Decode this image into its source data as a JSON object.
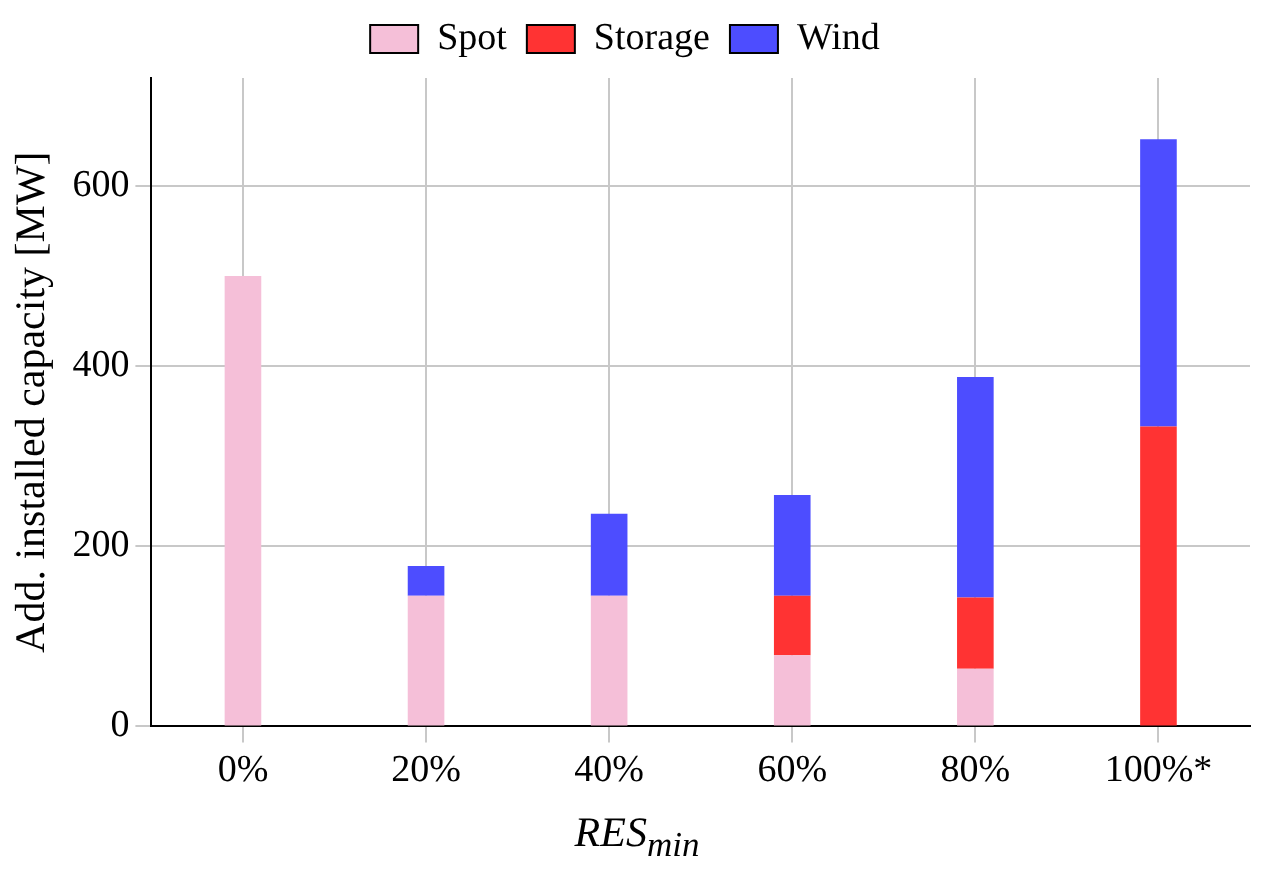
{
  "chart_data": {
    "type": "bar",
    "stacked": true,
    "xlabel": "RES$_{min}$",
    "ylabel": "Add. installed capacity [MW]",
    "categories": [
      "0%",
      "20%",
      "40%",
      "60%",
      "80%",
      "100%*"
    ],
    "series": [
      {
        "name": "Spot",
        "color": "#f5bfd8",
        "values": [
          500,
          145,
          145,
          79,
          64,
          null
        ]
      },
      {
        "name": "Storage",
        "color": "#ff3333",
        "values": [
          null,
          null,
          null,
          66,
          79,
          333
        ]
      },
      {
        "name": "Wind",
        "color": "#4d4dff",
        "values": [
          null,
          33,
          91,
          112,
          245,
          319
        ]
      }
    ],
    "ylim": [
      0,
      720
    ],
    "yticks": [
      0,
      200,
      400,
      600
    ],
    "grid": true,
    "legend": "top"
  }
}
